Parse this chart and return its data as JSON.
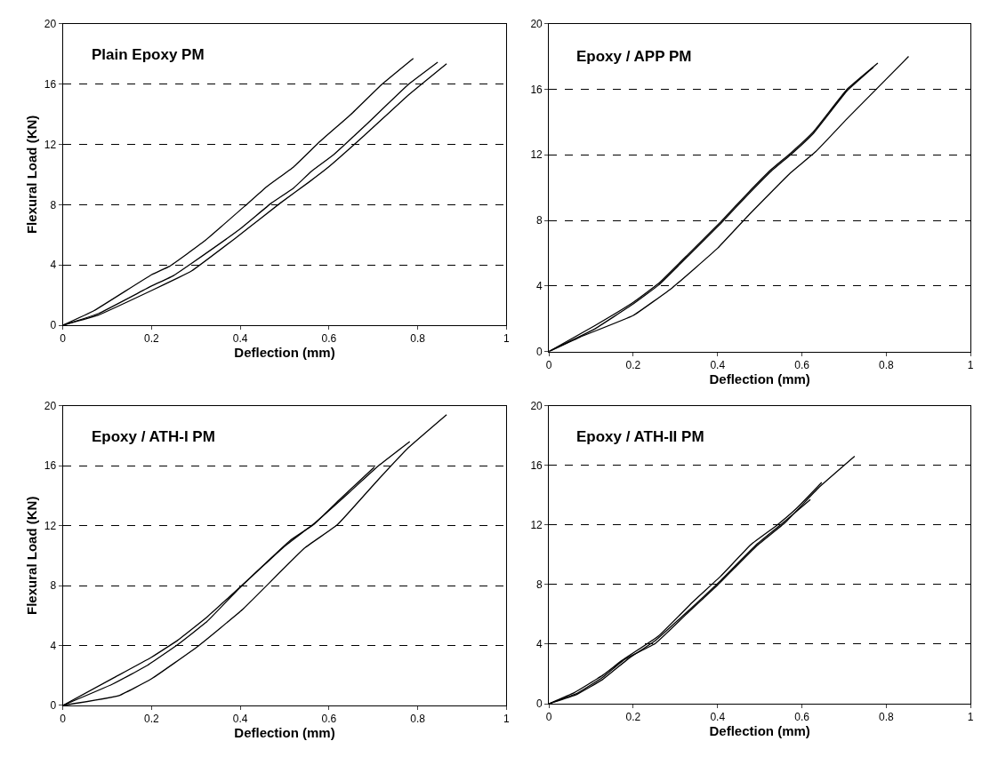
{
  "chart_data": [
    {
      "type": "line",
      "title": "Plain Epoxy PM",
      "ylabel": "Flexural Load (KN)",
      "xlabel": "Deflection (mm)",
      "xlim": [
        0,
        1
      ],
      "xticks": [
        0,
        0.2,
        0.4,
        0.6,
        0.8,
        1
      ],
      "ylim": [
        0,
        20
      ],
      "yticks": [
        0,
        4,
        8,
        12,
        16,
        20
      ],
      "grid": "y",
      "line_style": "solid",
      "series": [
        {
          "color": "#000000",
          "x": [
            0,
            0.07,
            0.2,
            0.24,
            0.32,
            0.41,
            0.46,
            0.52,
            0.58,
            0.65,
            0.72,
            0.79
          ],
          "values": [
            0,
            0.96,
            3.35,
            3.9,
            5.6,
            7.9,
            9.2,
            10.5,
            12.2,
            14.0,
            16.0,
            17.7
          ]
        },
        {
          "color": "#000000",
          "x": [
            0,
            0.08,
            0.2,
            0.25,
            0.29,
            0.4,
            0.47,
            0.52,
            0.56,
            0.61,
            0.68,
            0.78,
            0.845
          ],
          "values": [
            0,
            0.77,
            2.6,
            3.3,
            4.1,
            6.4,
            8.1,
            9.1,
            10.2,
            11.3,
            13.2,
            16.0,
            17.45
          ]
        },
        {
          "color": "#000000",
          "x": [
            0,
            0.08,
            0.2,
            0.26,
            0.29,
            0.39,
            0.49,
            0.555,
            0.595,
            0.68,
            0.78,
            0.865
          ],
          "values": [
            0,
            0.67,
            2.3,
            3.15,
            3.6,
            5.8,
            8.1,
            9.5,
            10.4,
            12.6,
            15.3,
            17.35
          ]
        }
      ]
    },
    {
      "type": "line",
      "title": "Epoxy / APP PM",
      "xlabel": "Deflection (mm)",
      "xlim": [
        0,
        1
      ],
      "xticks": [
        0,
        0.2,
        0.4,
        0.6,
        0.8,
        1
      ],
      "ylim": [
        0,
        20
      ],
      "yticks": [
        0,
        4,
        8,
        12,
        16,
        20
      ],
      "grid": "y",
      "line_style": "solid",
      "series": [
        {
          "color": "#000000",
          "x": [
            0,
            0.107,
            0.2,
            0.26,
            0.333,
            0.407,
            0.473,
            0.527,
            0.573,
            0.627,
            0.707,
            0.78
          ],
          "values": [
            0,
            1.55,
            3.0,
            4.15,
            6.0,
            7.9,
            9.7,
            11.1,
            12.1,
            13.4,
            16.0,
            17.6
          ]
        },
        {
          "color": "#000000",
          "x": [
            0,
            0.107,
            0.2,
            0.26,
            0.333,
            0.407,
            0.473,
            0.527,
            0.573,
            0.627,
            0.707,
            0.77
          ],
          "values": [
            0,
            1.35,
            2.9,
            4.05,
            5.9,
            7.8,
            9.6,
            11.0,
            12.0,
            13.3,
            15.9,
            17.35
          ]
        },
        {
          "color": "#000000",
          "x": [
            0,
            0.073,
            0.2,
            0.293,
            0.4,
            0.473,
            0.573,
            0.633,
            0.707,
            0.78,
            0.853
          ],
          "values": [
            0,
            0.87,
            2.2,
            3.9,
            6.3,
            8.3,
            10.9,
            12.2,
            14.2,
            16.1,
            18.0
          ]
        }
      ]
    },
    {
      "type": "line",
      "title": "Epoxy / ATH-I PM",
      "ylabel": "Flexural Load (KN)",
      "xlabel": "Deflection (mm)",
      "xlim": [
        0,
        1
      ],
      "xticks": [
        0,
        0.2,
        0.4,
        0.6,
        0.8,
        1
      ],
      "ylim": [
        0,
        20
      ],
      "yticks": [
        0,
        4,
        8,
        12,
        16,
        20
      ],
      "grid": "y",
      "line_style": "solid",
      "series": [
        {
          "color": "#000000",
          "x": [
            0,
            0.112,
            0.199,
            0.259,
            0.325,
            0.405,
            0.512,
            0.565,
            0.619,
            0.702
          ],
          "values": [
            0,
            1.8,
            3.2,
            4.35,
            5.9,
            8.05,
            11.0,
            12.06,
            13.6,
            15.9
          ]
        },
        {
          "color": "#000000",
          "x": [
            0,
            0.112,
            0.192,
            0.259,
            0.325,
            0.399,
            0.499,
            0.565,
            0.645,
            0.712,
            0.782
          ],
          "values": [
            0,
            1.42,
            2.7,
            4.06,
            5.6,
            7.85,
            10.6,
            12.1,
            14.2,
            16.0,
            17.6
          ]
        },
        {
          "color": "#000000",
          "x": [
            0,
            0.125,
            0.199,
            0.305,
            0.405,
            0.545,
            0.619,
            0.712,
            0.779,
            0.865
          ],
          "values": [
            0,
            0.64,
            1.76,
            3.96,
            6.4,
            10.5,
            12.06,
            15.1,
            17.2,
            19.4
          ]
        }
      ]
    },
    {
      "type": "line",
      "title": "Epoxy / ATH-II PM",
      "xlabel": "Deflection (mm)",
      "xlim": [
        0,
        1
      ],
      "xticks": [
        0,
        0.2,
        0.4,
        0.6,
        0.8,
        1
      ],
      "ylim": [
        0,
        20
      ],
      "yticks": [
        0,
        4,
        8,
        12,
        16,
        20
      ],
      "grid": "y",
      "line_style": "solid",
      "series": [
        {
          "color": "#000000",
          "x": [
            0,
            0.06,
            0.127,
            0.173,
            0.26,
            0.34,
            0.407,
            0.48,
            0.54,
            0.587,
            0.647
          ],
          "values": [
            0,
            0.74,
            1.9,
            2.9,
            4.55,
            6.8,
            8.55,
            10.7,
            11.96,
            13.1,
            14.85
          ]
        },
        {
          "color": "#000000",
          "x": [
            0,
            0.067,
            0.127,
            0.187,
            0.253,
            0.333,
            0.4,
            0.493,
            0.56,
            0.62
          ],
          "values": [
            0,
            0.64,
            1.62,
            2.99,
            4.25,
            6.3,
            8.06,
            10.7,
            12.25,
            13.7
          ]
        },
        {
          "color": "#000000",
          "x": [
            0,
            0.067,
            0.127,
            0.18,
            0.253,
            0.333,
            0.4,
            0.493,
            0.56,
            0.64,
            0.725
          ],
          "values": [
            0,
            0.7,
            1.76,
            2.99,
            4.06,
            6.2,
            7.96,
            10.6,
            12.15,
            14.5,
            16.6
          ]
        }
      ]
    }
  ]
}
